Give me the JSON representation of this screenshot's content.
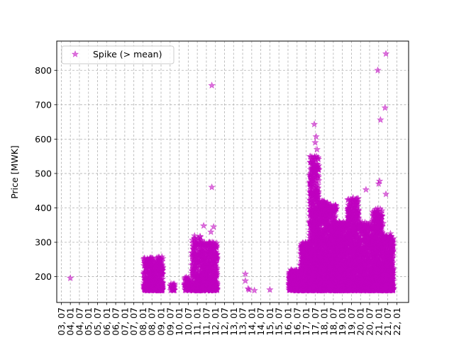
{
  "chart_data": {
    "type": "scatter",
    "title": "",
    "xlabel": "",
    "ylabel": "Price [MWK]",
    "x_ticks": [
      "03, 07",
      "04, 01",
      "04, 07",
      "05, 01",
      "05, 07",
      "06, 01",
      "06, 07",
      "07, 01",
      "07, 07",
      "08, 01",
      "08, 07",
      "09, 01",
      "09, 07",
      "10, 01",
      "10, 07",
      "11, 01",
      "11, 07",
      "12, 01",
      "12, 07",
      "13, 01",
      "13, 07",
      "14, 01",
      "14, 07",
      "15, 01",
      "15, 07",
      "16, 01",
      "16, 07",
      "17, 01",
      "17, 07",
      "18, 01",
      "18, 07",
      "19, 01",
      "19, 07",
      "20, 01",
      "20, 07",
      "21, 01",
      "21, 07",
      "22, 01"
    ],
    "x_range": [
      -0.5,
      38.3
    ],
    "y_ticks": [
      200,
      300,
      400,
      500,
      600,
      700,
      800
    ],
    "ylim": [
      125,
      885
    ],
    "grid": true,
    "legend_position": "upper-left",
    "series": [
      {
        "name": "Spike (> mean)",
        "marker": "star",
        "color": "#bf00bf",
        "clusters": [
          {
            "x_start": 9.1,
            "x_end": 10.2,
            "y_min": 160,
            "y_max": 255,
            "count": 220
          },
          {
            "x_start": 10.2,
            "x_end": 11.2,
            "y_min": 160,
            "y_max": 258,
            "count": 230
          },
          {
            "x_start": 12.0,
            "x_end": 12.5,
            "y_min": 160,
            "y_max": 180,
            "count": 25
          },
          {
            "x_start": 13.6,
            "x_end": 14.4,
            "y_min": 160,
            "y_max": 200,
            "count": 60
          },
          {
            "x_start": 14.4,
            "x_end": 15.5,
            "y_min": 160,
            "y_max": 320,
            "count": 260
          },
          {
            "x_start": 15.5,
            "x_end": 17.2,
            "y_min": 160,
            "y_max": 300,
            "count": 420
          },
          {
            "x_start": 25.1,
            "x_end": 26.4,
            "y_min": 160,
            "y_max": 220,
            "count": 260
          },
          {
            "x_start": 26.4,
            "x_end": 27.4,
            "y_min": 160,
            "y_max": 300,
            "count": 300
          },
          {
            "x_start": 27.4,
            "x_end": 28.4,
            "y_min": 160,
            "y_max": 550,
            "count": 700
          },
          {
            "x_start": 28.4,
            "x_end": 29.4,
            "y_min": 160,
            "y_max": 420,
            "count": 600
          },
          {
            "x_start": 29.4,
            "x_end": 30.4,
            "y_min": 160,
            "y_max": 410,
            "count": 600
          },
          {
            "x_start": 30.4,
            "x_end": 31.6,
            "y_min": 160,
            "y_max": 360,
            "count": 600
          },
          {
            "x_start": 31.6,
            "x_end": 32.8,
            "y_min": 160,
            "y_max": 430,
            "count": 600
          },
          {
            "x_start": 32.8,
            "x_end": 34.3,
            "y_min": 160,
            "y_max": 360,
            "count": 560
          },
          {
            "x_start": 34.3,
            "x_end": 35.4,
            "y_min": 160,
            "y_max": 400,
            "count": 500
          },
          {
            "x_start": 35.4,
            "x_end": 36.6,
            "y_min": 160,
            "y_max": 320,
            "count": 520
          }
        ],
        "points": [
          {
            "x": 1.0,
            "y": 196
          },
          {
            "x": 9.1,
            "y": 250
          },
          {
            "x": 10.1,
            "y": 253
          },
          {
            "x": 10.8,
            "y": 256
          },
          {
            "x": 15.7,
            "y": 348
          },
          {
            "x": 16.6,
            "y": 756
          },
          {
            "x": 16.6,
            "y": 460
          },
          {
            "x": 16.8,
            "y": 345
          },
          {
            "x": 16.5,
            "y": 330
          },
          {
            "x": 20.3,
            "y": 208
          },
          {
            "x": 20.3,
            "y": 188
          },
          {
            "x": 20.6,
            "y": 165
          },
          {
            "x": 20.7,
            "y": 162
          },
          {
            "x": 21.3,
            "y": 160
          },
          {
            "x": 23.0,
            "y": 162
          },
          {
            "x": 27.9,
            "y": 643
          },
          {
            "x": 28.1,
            "y": 607
          },
          {
            "x": 28.0,
            "y": 590
          },
          {
            "x": 28.2,
            "y": 570
          },
          {
            "x": 29.1,
            "y": 395
          },
          {
            "x": 33.6,
            "y": 453
          },
          {
            "x": 34.9,
            "y": 800
          },
          {
            "x": 35.2,
            "y": 656
          },
          {
            "x": 35.1,
            "y": 478
          },
          {
            "x": 35.0,
            "y": 470
          },
          {
            "x": 35.5,
            "y": 355
          },
          {
            "x": 35.8,
            "y": 848
          },
          {
            "x": 35.7,
            "y": 691
          },
          {
            "x": 35.8,
            "y": 440
          },
          {
            "x": 36.3,
            "y": 325
          },
          {
            "x": 36.3,
            "y": 175
          }
        ]
      }
    ]
  },
  "legend": {
    "label": "Spike (> mean)"
  }
}
